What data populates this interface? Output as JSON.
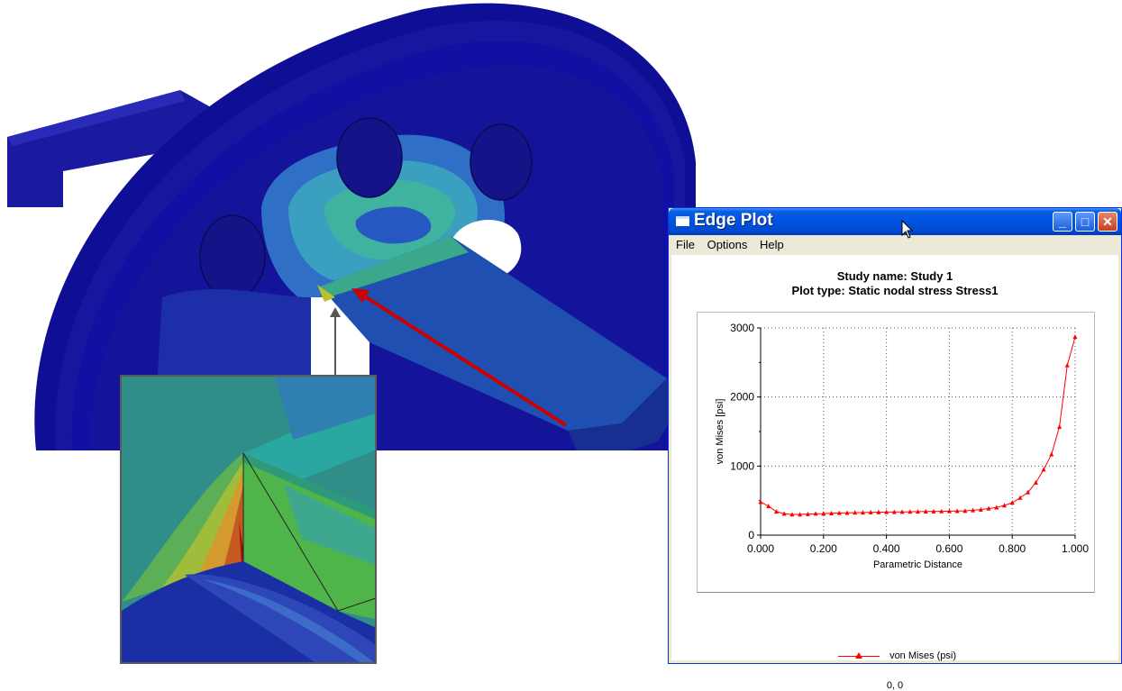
{
  "window": {
    "title": "Edge Plot",
    "menu": [
      "File",
      "Options",
      "Help"
    ]
  },
  "plot": {
    "study_line": "Study name: Study 1",
    "type_line": "Plot type: Static nodal stress Stress1",
    "legend_label": "von Mises (psi)",
    "cursor_readout": "0, 0"
  },
  "chart_data": {
    "type": "line",
    "xlabel": "Parametric Distance",
    "ylabel": "von Mises [psi]",
    "xlim": [
      0,
      1
    ],
    "ylim": [
      0,
      3000
    ],
    "xticks": [
      "0.000",
      "0.200",
      "0.400",
      "0.600",
      "0.800",
      "1.000"
    ],
    "yticks": [
      "0",
      "1000",
      "2000",
      "3000"
    ],
    "grid": true,
    "legend": "bottom",
    "series": [
      {
        "name": "von Mises (psi)",
        "color": "#ff0000",
        "marker": "triangle",
        "x": [
          0.0,
          0.025,
          0.05,
          0.075,
          0.1,
          0.125,
          0.15,
          0.175,
          0.2,
          0.225,
          0.25,
          0.275,
          0.3,
          0.325,
          0.35,
          0.375,
          0.4,
          0.425,
          0.45,
          0.475,
          0.5,
          0.525,
          0.55,
          0.575,
          0.6,
          0.625,
          0.65,
          0.675,
          0.7,
          0.725,
          0.75,
          0.775,
          0.8,
          0.825,
          0.85,
          0.875,
          0.9,
          0.925,
          0.95,
          0.975,
          1.0
        ],
        "values": [
          480,
          420,
          340,
          310,
          300,
          300,
          305,
          310,
          312,
          315,
          320,
          322,
          325,
          327,
          330,
          332,
          334,
          335,
          337,
          338,
          340,
          342,
          344,
          345,
          347,
          349,
          352,
          360,
          370,
          385,
          400,
          430,
          470,
          540,
          620,
          760,
          950,
          1170,
          1570,
          2460,
          2870
        ]
      }
    ]
  }
}
